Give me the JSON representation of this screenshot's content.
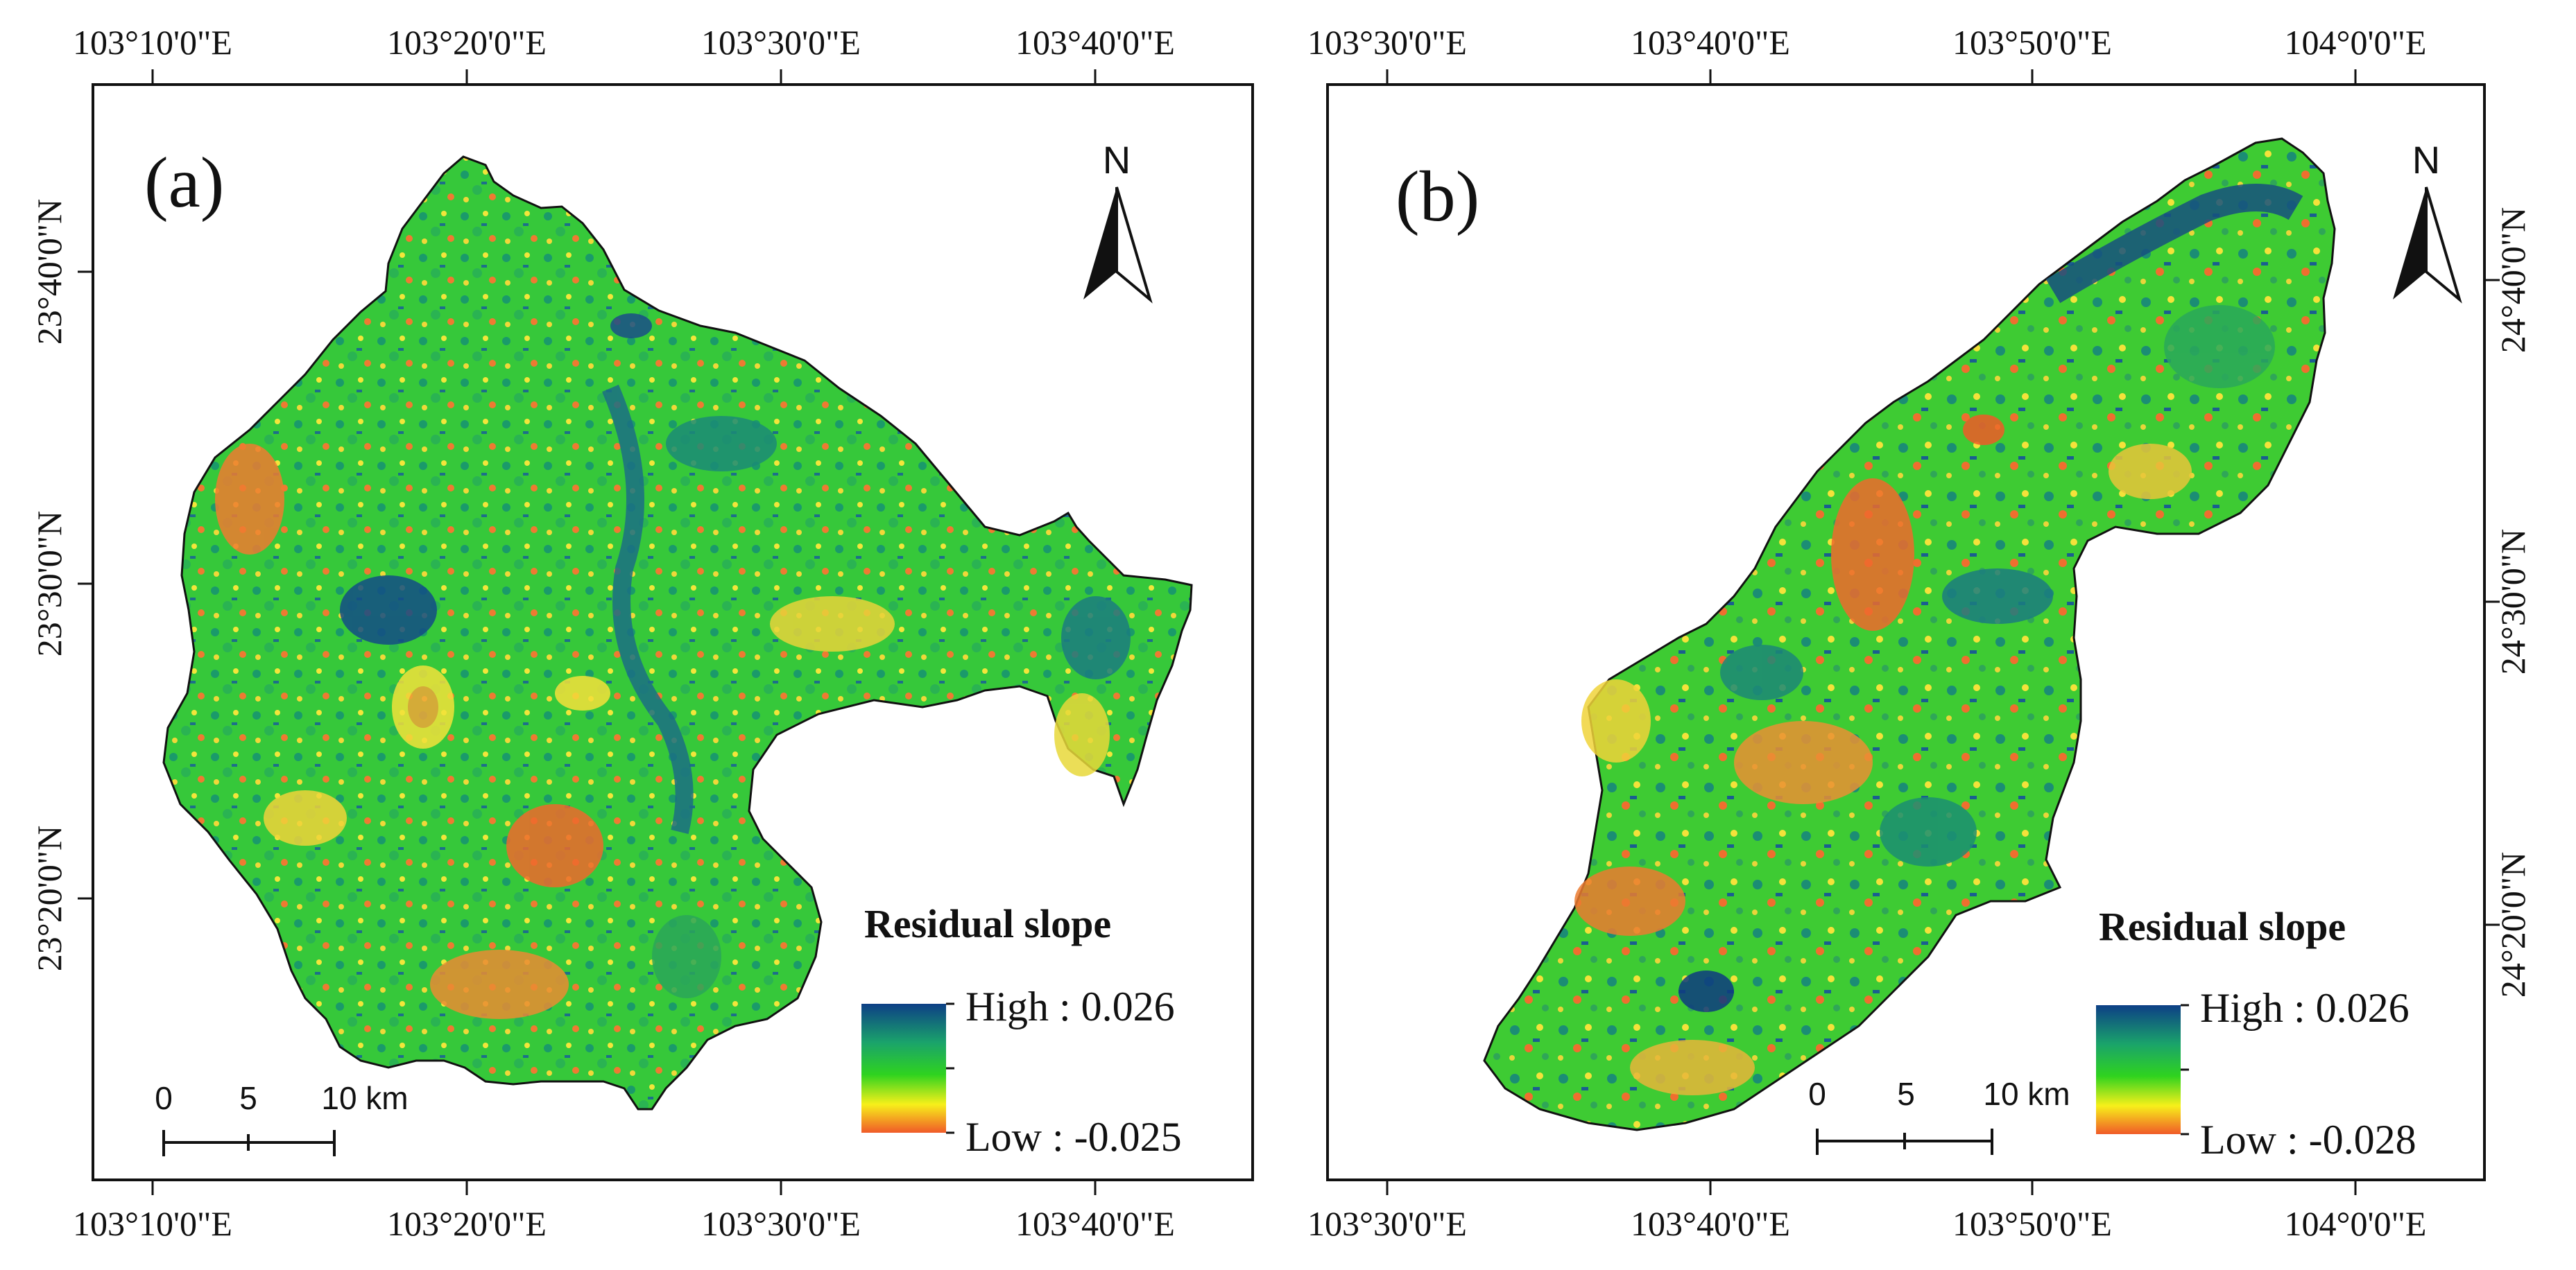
{
  "panel_a": {
    "label": "(a)",
    "top_lon_labels": [
      "103°10'0\"E",
      "103°20'0\"E",
      "103°30'0\"E",
      "103°40'0\"E"
    ],
    "bottom_lon_labels": [
      "103°10'0\"E",
      "103°20'0\"E",
      "103°30'0\"E",
      "103°40'0\"E"
    ],
    "left_lat_labels": [
      "23°40'0\"N",
      "23°30'0\"N",
      "23°20'0\"N"
    ],
    "north_label": "N",
    "legend": {
      "title": "Residual slope",
      "high": "High : 0.026",
      "low": "Low : -0.025"
    },
    "scale": {
      "zero": "0",
      "mid": "5",
      "end": "10 km"
    }
  },
  "panel_b": {
    "label": "(b)",
    "top_lon_labels": [
      "103°30'0\"E",
      "103°40'0\"E",
      "103°50'0\"E",
      "104°0'0\"E"
    ],
    "bottom_lon_labels": [
      "103°30'0\"E",
      "103°40'0\"E",
      "103°50'0\"E",
      "104°0'0\"E"
    ],
    "right_lat_labels": [
      "24°40'0\"N",
      "24°30'0\"N",
      "24°20'0\"N"
    ],
    "north_label": "N",
    "legend": {
      "title": "Residual slope",
      "high": "High : 0.026",
      "low": "Low : -0.028"
    },
    "scale": {
      "zero": "0",
      "mid": "5",
      "end": "10 km"
    }
  },
  "colors": {
    "high": "#0d3f86",
    "mid_high": "#1aa36b",
    "mid": "#2fd31f",
    "mid_low": "#f7f01a",
    "low": "#f05a28",
    "frame": "#111111"
  }
}
